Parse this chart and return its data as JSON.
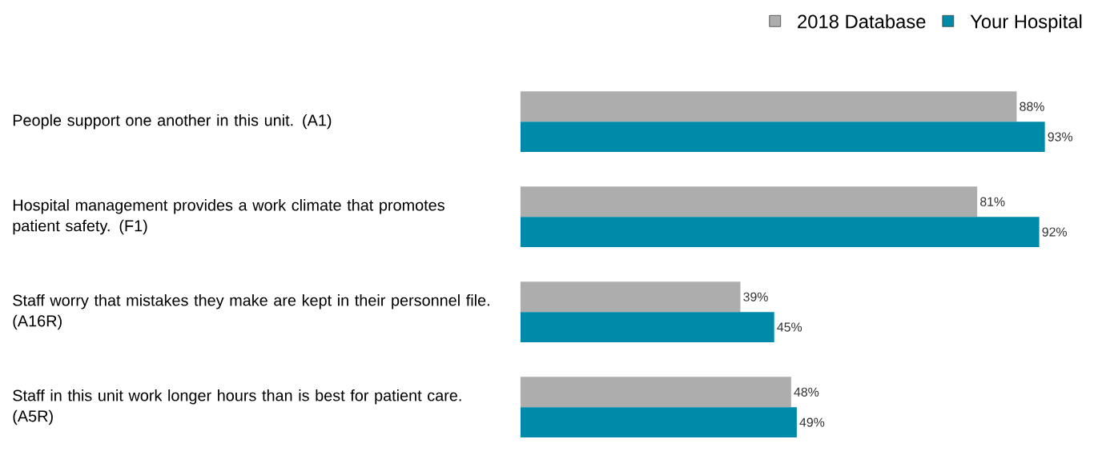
{
  "chart_data": {
    "type": "bar",
    "orientation": "horizontal",
    "categories": [
      "People support one another in this unit. (A1)",
      "Hospital management provides a work climate that promotes patient safety. (F1)",
      "Staff worry that mistakes they make are kept in their personnel file. (A16R)",
      "Staff in this unit work longer hours than is best for patient care. (A5R)"
    ],
    "series": [
      {
        "name": "2018 Database",
        "color": "#adadad",
        "values": [
          88,
          81,
          39,
          48
        ],
        "value_labels": [
          "88%",
          "81%",
          "39%",
          "48%"
        ]
      },
      {
        "name": "Your Hospital",
        "color": "#008aaa",
        "values": [
          93,
          92,
          45,
          49
        ],
        "value_labels": [
          "93%",
          "92%",
          "45%",
          "49%"
        ]
      }
    ],
    "legend": "top right"
  }
}
